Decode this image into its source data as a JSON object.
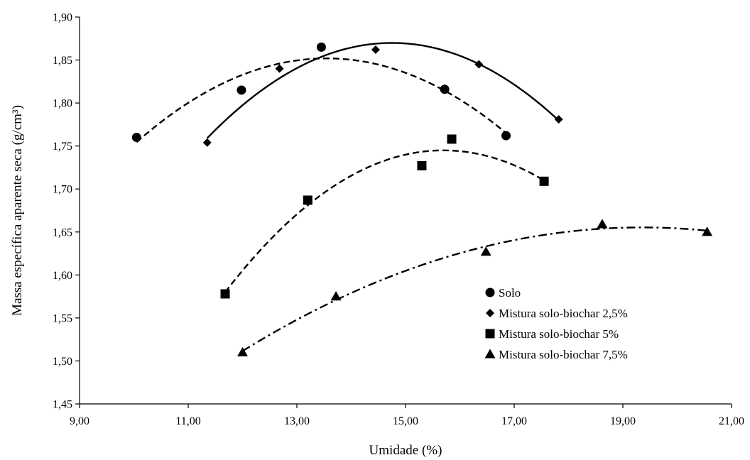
{
  "chart_data": {
    "type": "scatter",
    "xlabel": "Umidade (%)",
    "ylabel": "Massa específica aparente seca (g/cm³)",
    "xlim": [
      9,
      21
    ],
    "ylim": [
      1.45,
      1.9
    ],
    "x_ticks": [
      "9,00",
      "11,00",
      "13,00",
      "15,00",
      "17,00",
      "19,00",
      "21,00"
    ],
    "y_ticks": [
      "1,45",
      "1,50",
      "1,55",
      "1,60",
      "1,65",
      "1,70",
      "1,75",
      "1,80",
      "1,85",
      "1,90"
    ],
    "grid": false,
    "legend_position": "bottom-right",
    "series": [
      {
        "name": "Solo",
        "marker": "circle",
        "line_style": "dashed",
        "points": [
          [
            10.05,
            1.76
          ],
          [
            11.98,
            1.815
          ],
          [
            13.45,
            1.865
          ],
          [
            15.72,
            1.816
          ],
          [
            16.85,
            1.762
          ]
        ]
      },
      {
        "name": "Mistura solo-biochar 2,5%",
        "marker": "diamond",
        "line_style": "solid",
        "points": [
          [
            11.35,
            1.754
          ],
          [
            12.68,
            1.84
          ],
          [
            14.45,
            1.862
          ],
          [
            16.35,
            1.845
          ],
          [
            17.82,
            1.781
          ]
        ]
      },
      {
        "name": "Mistura solo-biochar 5%",
        "marker": "square",
        "line_style": "dashed",
        "points": [
          [
            11.68,
            1.578
          ],
          [
            13.2,
            1.687
          ],
          [
            15.3,
            1.727
          ],
          [
            15.85,
            1.758
          ],
          [
            17.55,
            1.709
          ]
        ]
      },
      {
        "name": "Mistura solo-biochar 7,5%",
        "marker": "triangle",
        "line_style": "dash-dot",
        "points": [
          [
            12.0,
            1.51
          ],
          [
            13.72,
            1.575
          ],
          [
            16.48,
            1.627
          ],
          [
            18.62,
            1.659
          ],
          [
            20.55,
            1.65
          ]
        ]
      }
    ]
  }
}
